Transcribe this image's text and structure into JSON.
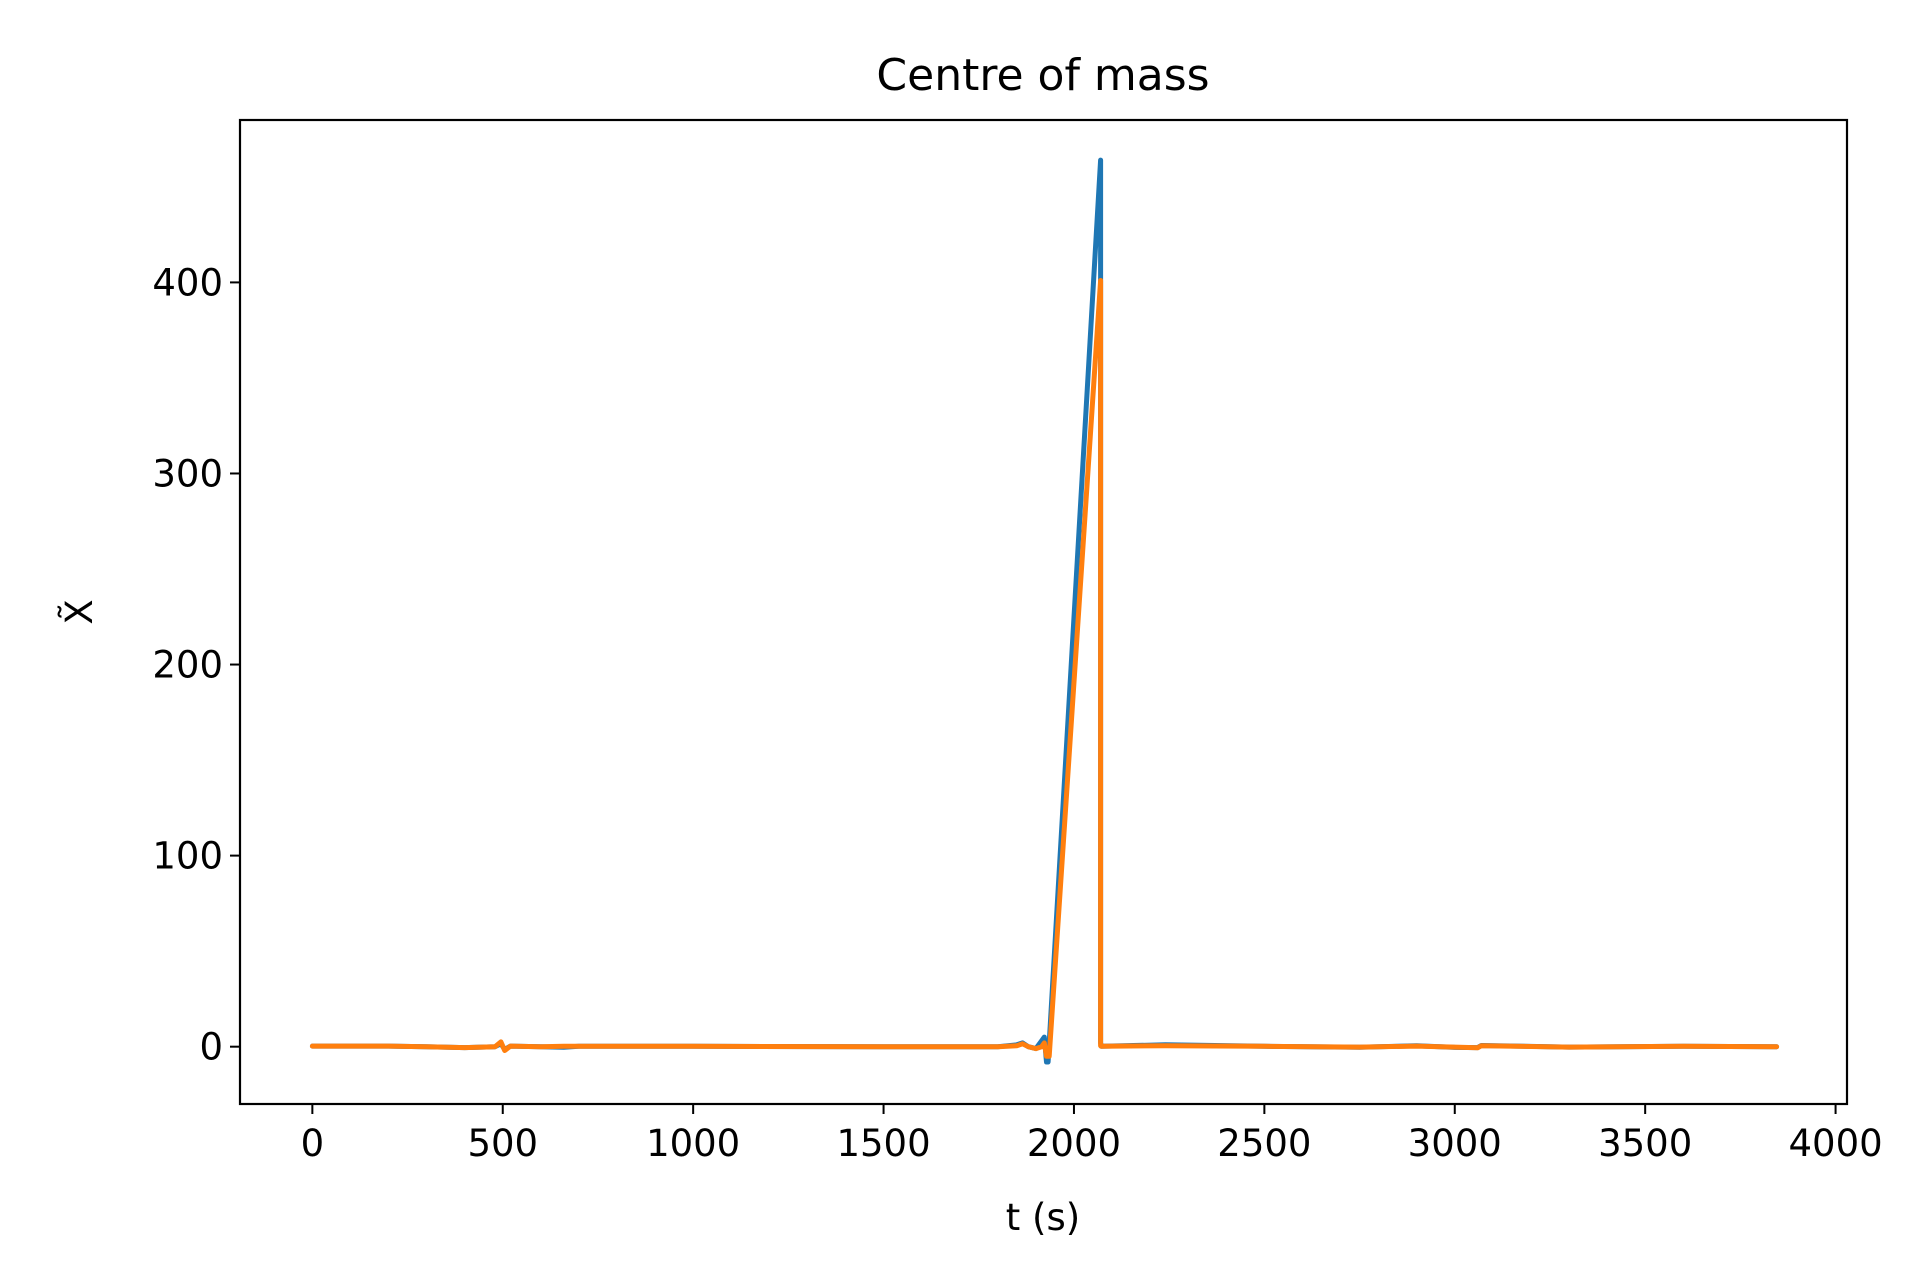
{
  "chart_data": {
    "type": "line",
    "title": "Centre of mass",
    "xlabel": "t (s)",
    "ylabel": "X̃",
    "xlim": [
      -190,
      4030
    ],
    "ylim": [
      -30,
      485
    ],
    "xticks": [
      0,
      500,
      1000,
      1500,
      2000,
      2500,
      3000,
      3500,
      4000
    ],
    "yticks": [
      0,
      100,
      200,
      300,
      400
    ],
    "grid": false,
    "series": [
      {
        "color": "#1f77b4",
        "x": [
          0,
          200,
          300,
          400,
          480,
          495,
          505,
          520,
          600,
          660,
          700,
          1000,
          1500,
          1800,
          1850,
          1865,
          1880,
          1900,
          1915,
          1922,
          1928,
          1932,
          2070,
          2070,
          2072,
          2240,
          2500,
          2750,
          2900,
          3000,
          3060,
          3070,
          3300,
          3600,
          3845
        ],
        "y": [
          0.3,
          0.3,
          0,
          -0.5,
          0,
          1.5,
          -1.5,
          0.3,
          0,
          -0.3,
          0.2,
          0.2,
          0,
          0,
          1,
          2,
          0,
          -1,
          3,
          5,
          -8,
          -8,
          464,
          2,
          0.2,
          1,
          0.2,
          -0.3,
          0.5,
          -0.4,
          -0.5,
          0.6,
          -0.2,
          0.2,
          0
        ]
      },
      {
        "color": "#ff7f0e",
        "x": [
          0,
          200,
          300,
          400,
          480,
          495,
          505,
          520,
          600,
          660,
          700,
          1000,
          1500,
          1800,
          1850,
          1865,
          1880,
          1900,
          1915,
          1922,
          1928,
          1935,
          2070,
          2070,
          2072,
          2240,
          2500,
          2750,
          2900,
          3000,
          3060,
          3070,
          3300,
          3600,
          3845
        ],
        "y": [
          0.3,
          0.3,
          0,
          -0.5,
          0,
          2.5,
          -2,
          0.3,
          0,
          0.2,
          0.2,
          0.2,
          0,
          0,
          0.5,
          1.5,
          0,
          -1,
          0,
          2,
          -5,
          -5,
          401,
          0.5,
          0.2,
          0.5,
          0.2,
          -0.2,
          0.3,
          -0.2,
          -0.6,
          0.5,
          -0.2,
          0.2,
          0
        ]
      }
    ]
  }
}
